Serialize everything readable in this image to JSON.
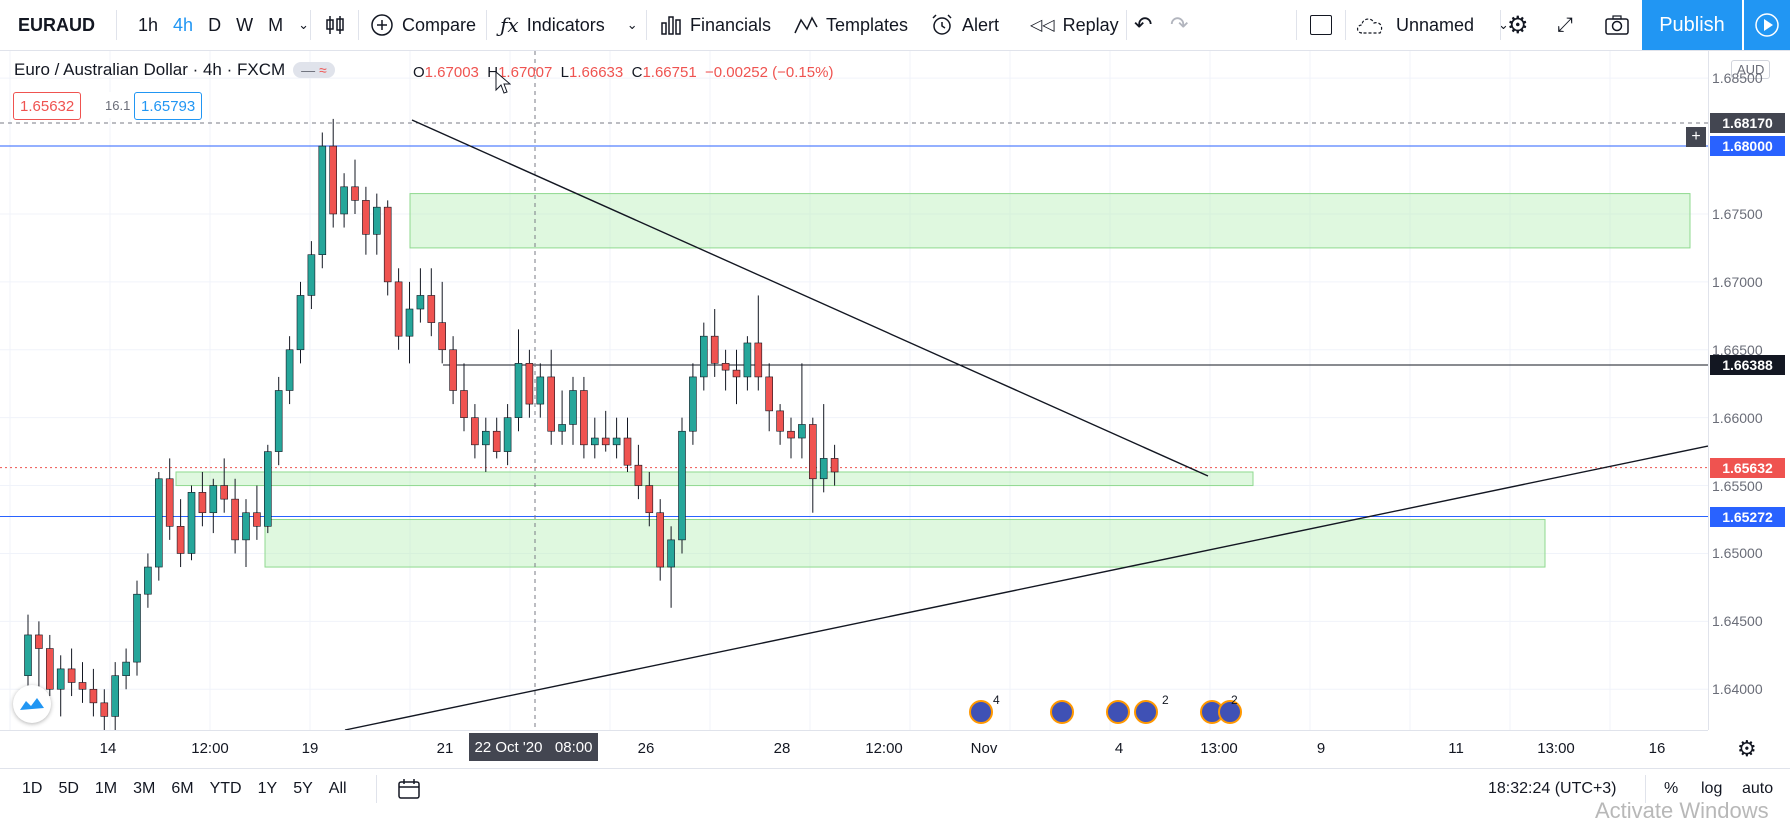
{
  "toolbar": {
    "symbol": "EURAUD",
    "intervals": [
      "1h",
      "4h",
      "D",
      "W",
      "M"
    ],
    "active_interval": "4h",
    "compare": "Compare",
    "indicators": "Indicators",
    "financials": "Financials",
    "templates": "Templates",
    "alert": "Alert",
    "replay": "Replay",
    "layout_name": "Unnamed",
    "publish": "Publish"
  },
  "legend": {
    "title": "Euro / Australian Dollar · 4h · FXCM",
    "open_label": "O",
    "open": "1.67003",
    "high_label": "H",
    "high": "1.67007",
    "low_label": "L",
    "low": "1.66633",
    "close_label": "C",
    "close": "1.66751",
    "change": "−0.00252 (−0.15%)",
    "bid": "1.65632",
    "spread": "16.1",
    "ask": "1.65793"
  },
  "price_axis": {
    "currency": "AUD",
    "ticks": [
      "1.68500",
      "1.67500",
      "1.67000",
      "1.66500",
      "1.66000",
      "1.65500",
      "1.65000",
      "1.64500",
      "1.64000"
    ],
    "tags": [
      {
        "value": "1.68170",
        "color": "#434651"
      },
      {
        "value": "1.68000",
        "color": "#2962ff"
      },
      {
        "value": "1.66388",
        "color": "#131722"
      },
      {
        "value": "1.65632",
        "color": "#ef5350"
      },
      {
        "value": "1.65272",
        "color": "#2962ff"
      }
    ]
  },
  "time_axis": {
    "ticks": [
      "14",
      "12:00",
      "19",
      "21",
      "26",
      "28",
      "12:00",
      "Nov",
      "4",
      "13:00",
      "9",
      "11",
      "13:00",
      "16"
    ],
    "crosshair_label": "22 Oct '20   08:00"
  },
  "events": [
    "4",
    "",
    "2",
    "2"
  ],
  "bottom": {
    "ranges": [
      "1D",
      "5D",
      "1M",
      "3M",
      "6M",
      "YTD",
      "1Y",
      "5Y",
      "All"
    ],
    "clock": "18:32:24 (UTC+3)",
    "percent": "%",
    "log": "log",
    "auto": "auto"
  },
  "watermark": "Activate Windows",
  "colors": {
    "up": "#26a69a",
    "down": "#ef5350",
    "zone": "#b8f0b8",
    "accent": "#2196f3"
  },
  "chart_data": {
    "type": "candlestick",
    "candles_ohlc": [
      [
        1.641,
        1.6455,
        1.639,
        1.644
      ],
      [
        1.644,
        1.645,
        1.64,
        1.643
      ],
      [
        1.643,
        1.644,
        1.6395,
        1.64
      ],
      [
        1.64,
        1.6425,
        1.638,
        1.6415
      ],
      [
        1.6415,
        1.643,
        1.6395,
        1.6405
      ],
      [
        1.6405,
        1.642,
        1.639,
        1.64
      ],
      [
        1.64,
        1.6415,
        1.638,
        1.639
      ],
      [
        1.639,
        1.64,
        1.637,
        1.638
      ],
      [
        1.638,
        1.642,
        1.637,
        1.641
      ],
      [
        1.641,
        1.643,
        1.64,
        1.642
      ],
      [
        1.642,
        1.648,
        1.641,
        1.647
      ],
      [
        1.647,
        1.65,
        1.646,
        1.649
      ],
      [
        1.649,
        1.656,
        1.648,
        1.6555
      ],
      [
        1.6555,
        1.657,
        1.651,
        1.652
      ],
      [
        1.652,
        1.654,
        1.649,
        1.65
      ],
      [
        1.65,
        1.655,
        1.6495,
        1.6545
      ],
      [
        1.6545,
        1.656,
        1.652,
        1.653
      ],
      [
        1.653,
        1.6555,
        1.6515,
        1.655
      ],
      [
        1.655,
        1.657,
        1.653,
        1.654
      ],
      [
        1.654,
        1.6555,
        1.65,
        1.651
      ],
      [
        1.651,
        1.654,
        1.649,
        1.653
      ],
      [
        1.653,
        1.655,
        1.651,
        1.652
      ],
      [
        1.652,
        1.658,
        1.6515,
        1.6575
      ],
      [
        1.6575,
        1.663,
        1.6565,
        1.662
      ],
      [
        1.662,
        1.666,
        1.661,
        1.665
      ],
      [
        1.665,
        1.67,
        1.664,
        1.669
      ],
      [
        1.669,
        1.673,
        1.668,
        1.672
      ],
      [
        1.672,
        1.681,
        1.671,
        1.68
      ],
      [
        1.68,
        1.682,
        1.674,
        1.675
      ],
      [
        1.675,
        1.678,
        1.674,
        1.677
      ],
      [
        1.677,
        1.679,
        1.675,
        1.676
      ],
      [
        1.676,
        1.677,
        1.672,
        1.6735
      ],
      [
        1.6735,
        1.6765,
        1.672,
        1.6755
      ],
      [
        1.6755,
        1.676,
        1.669,
        1.67
      ],
      [
        1.67,
        1.671,
        1.665,
        1.666
      ],
      [
        1.666,
        1.67,
        1.664,
        1.668
      ],
      [
        1.668,
        1.671,
        1.667,
        1.669
      ],
      [
        1.669,
        1.671,
        1.666,
        1.667
      ],
      [
        1.667,
        1.67,
        1.664,
        1.665
      ],
      [
        1.665,
        1.666,
        1.661,
        1.662
      ],
      [
        1.662,
        1.664,
        1.659,
        1.66
      ],
      [
        1.66,
        1.661,
        1.657,
        1.658
      ],
      [
        1.658,
        1.66,
        1.656,
        1.659
      ],
      [
        1.659,
        1.66,
        1.657,
        1.6575
      ],
      [
        1.6575,
        1.661,
        1.6565,
        1.66
      ],
      [
        1.66,
        1.6665,
        1.659,
        1.664
      ],
      [
        1.664,
        1.665,
        1.66,
        1.661
      ],
      [
        1.661,
        1.664,
        1.66,
        1.663
      ],
      [
        1.663,
        1.665,
        1.658,
        1.659
      ],
      [
        1.659,
        1.662,
        1.658,
        1.6595
      ],
      [
        1.6595,
        1.663,
        1.658,
        1.662
      ],
      [
        1.662,
        1.663,
        1.657,
        1.658
      ],
      [
        1.658,
        1.66,
        1.657,
        1.6585
      ],
      [
        1.6585,
        1.6605,
        1.6575,
        1.658
      ],
      [
        1.658,
        1.66,
        1.657,
        1.6585
      ],
      [
        1.6585,
        1.66,
        1.656,
        1.6565
      ],
      [
        1.6565,
        1.658,
        1.654,
        1.655
      ],
      [
        1.655,
        1.656,
        1.652,
        1.653
      ],
      [
        1.653,
        1.654,
        1.648,
        1.649
      ],
      [
        1.649,
        1.652,
        1.646,
        1.651
      ],
      [
        1.651,
        1.66,
        1.65,
        1.659
      ],
      [
        1.659,
        1.664,
        1.658,
        1.663
      ],
      [
        1.663,
        1.667,
        1.662,
        1.666
      ],
      [
        1.666,
        1.668,
        1.663,
        1.664
      ],
      [
        1.664,
        1.665,
        1.662,
        1.6635
      ],
      [
        1.6635,
        1.665,
        1.661,
        1.663
      ],
      [
        1.663,
        1.666,
        1.662,
        1.6655
      ],
      [
        1.6655,
        1.669,
        1.662,
        1.663
      ],
      [
        1.663,
        1.664,
        1.659,
        1.6605
      ],
      [
        1.6605,
        1.661,
        1.658,
        1.659
      ],
      [
        1.659,
        1.66,
        1.657,
        1.6585
      ],
      [
        1.6585,
        1.664,
        1.657,
        1.6595
      ],
      [
        1.6595,
        1.66,
        1.653,
        1.6555
      ],
      [
        1.6555,
        1.661,
        1.6545,
        1.657
      ],
      [
        1.657,
        1.658,
        1.655,
        1.656
      ]
    ],
    "horizontal_levels": [
      1.6817,
      1.68,
      1.66388,
      1.65632,
      1.65272
    ],
    "zones": [
      [
        1.6725,
        1.6765
      ],
      [
        1.655,
        1.656
      ],
      [
        1.649,
        1.6525
      ]
    ],
    "ylim": [
      1.637,
      1.687
    ]
  }
}
